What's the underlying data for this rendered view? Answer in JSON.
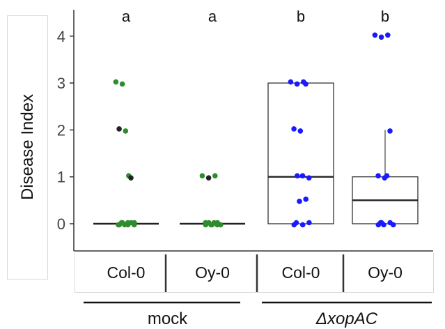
{
  "chart_data": {
    "type": "box-strip",
    "ylabel": "Disease Index",
    "ylim": [
      -0.5,
      4.5
    ],
    "yticks": [
      0,
      1,
      2,
      3,
      4
    ],
    "grid": false,
    "categories": [
      "Col-0",
      "Oy-0",
      "Col-0",
      "Oy-0"
    ],
    "groups": [
      {
        "label": "mock",
        "italic": false,
        "categories": [
          0,
          1
        ]
      },
      {
        "label": "ΔxopAC",
        "italic": true,
        "categories": [
          2,
          3
        ]
      }
    ],
    "significance": [
      "a",
      "a",
      "b",
      "b"
    ],
    "box_color": "#222222",
    "point_colors": {
      "green": "#2e8b2e",
      "blue": "#1a1aff",
      "dark": "#222222"
    },
    "boxes": [
      {
        "category": 0,
        "q1": 0,
        "median": 0,
        "q3": 0,
        "whisker_low": 0,
        "whisker_high": 0
      },
      {
        "category": 1,
        "q1": 0,
        "median": 0,
        "q3": 0,
        "whisker_low": 0,
        "whisker_high": 0
      },
      {
        "category": 2,
        "q1": 0,
        "median": 1,
        "q3": 3,
        "whisker_low": 0,
        "whisker_high": 3
      },
      {
        "category": 3,
        "q1": 0,
        "median": 0.5,
        "q3": 1,
        "whisker_low": 0,
        "whisker_high": 2
      }
    ],
    "points": [
      {
        "category": 0,
        "values": [
          3,
          3,
          1,
          1,
          2,
          2,
          0,
          0,
          0,
          0,
          0,
          0,
          0,
          0,
          0,
          0
        ],
        "colors": [
          "green",
          "green",
          "green",
          "dark",
          "dark",
          "green",
          "green",
          "green",
          "green",
          "green",
          "green",
          "green",
          "green",
          "green",
          "green",
          "green"
        ]
      },
      {
        "category": 1,
        "values": [
          1,
          1,
          1,
          0,
          0,
          0,
          0,
          0,
          0,
          0,
          0,
          0
        ],
        "colors": [
          "green",
          "dark",
          "green",
          "green",
          "green",
          "green",
          "green",
          "green",
          "green",
          "green",
          "green",
          "green"
        ]
      },
      {
        "category": 2,
        "values": [
          3,
          3,
          3,
          3,
          2,
          2,
          1,
          1,
          1,
          0.5,
          0.5,
          0,
          0,
          0,
          0
        ],
        "colors": [
          "blue",
          "blue",
          "blue",
          "blue",
          "blue",
          "blue",
          "blue",
          "blue",
          "blue",
          "blue",
          "blue",
          "blue",
          "blue",
          "blue",
          "blue"
        ]
      },
      {
        "category": 3,
        "values": [
          4,
          4,
          4,
          2,
          1,
          1,
          1,
          0,
          0,
          0,
          0,
          0,
          0
        ],
        "colors": [
          "blue",
          "blue",
          "blue",
          "blue",
          "blue",
          "blue",
          "blue",
          "blue",
          "blue",
          "blue",
          "blue",
          "blue",
          "blue"
        ]
      }
    ]
  }
}
